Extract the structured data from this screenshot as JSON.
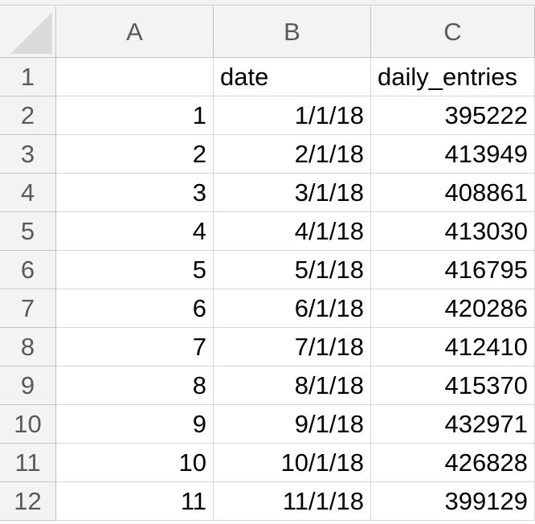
{
  "columns": [
    "A",
    "B",
    "C"
  ],
  "rows": [
    {
      "row": "1",
      "a": "",
      "b": "date",
      "c": "daily_entries"
    },
    {
      "row": "2",
      "a": "1",
      "b": "1/1/18",
      "c": "395222"
    },
    {
      "row": "3",
      "a": "2",
      "b": "2/1/18",
      "c": "413949"
    },
    {
      "row": "4",
      "a": "3",
      "b": "3/1/18",
      "c": "408861"
    },
    {
      "row": "5",
      "a": "4",
      "b": "4/1/18",
      "c": "413030"
    },
    {
      "row": "6",
      "a": "5",
      "b": "5/1/18",
      "c": "416795"
    },
    {
      "row": "7",
      "a": "6",
      "b": "6/1/18",
      "c": "420286"
    },
    {
      "row": "8",
      "a": "7",
      "b": "7/1/18",
      "c": "412410"
    },
    {
      "row": "9",
      "a": "8",
      "b": "8/1/18",
      "c": "415370"
    },
    {
      "row": "10",
      "a": "9",
      "b": "9/1/18",
      "c": "432971"
    },
    {
      "row": "11",
      "a": "10",
      "b": "10/1/18",
      "c": "426828"
    },
    {
      "row": "12",
      "a": "11",
      "b": "11/1/18",
      "c": "399129"
    }
  ]
}
